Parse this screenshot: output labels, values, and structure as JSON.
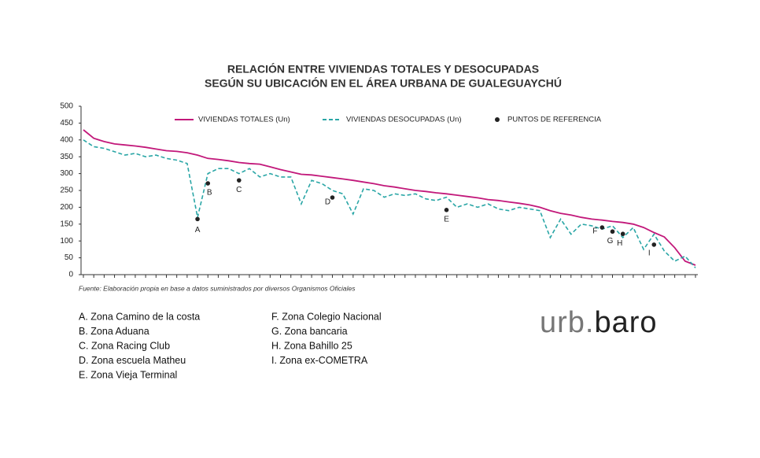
{
  "chart_data": {
    "type": "line",
    "title": [
      "RELACIÓN ENTRE VIVIENDAS TOTALES Y DESOCUPADAS",
      "SEGÚN SU UBICACIÓN EN EL ÁREA URBANA DE GUALEGUAYCHÚ"
    ],
    "categories": [
      null,
      null,
      null,
      null,
      null,
      null,
      null,
      null,
      null,
      null,
      null,
      null,
      null,
      null,
      null,
      null,
      null,
      null,
      null,
      null,
      null,
      null,
      null,
      null,
      null,
      null,
      null,
      null,
      null,
      null,
      null,
      null,
      null,
      null,
      null,
      null,
      null,
      null,
      null,
      null,
      null,
      null,
      null,
      null,
      null,
      null,
      null,
      null,
      null,
      null,
      null,
      null,
      null,
      null,
      null,
      null,
      null,
      null,
      null,
      null
    ],
    "series": [
      {
        "name": "VIVIENDAS TOTALES (Un)",
        "color": "#c2187a",
        "style": "solid",
        "values": [
          430,
          405,
          395,
          388,
          385,
          382,
          378,
          373,
          368,
          366,
          362,
          355,
          345,
          342,
          338,
          333,
          330,
          328,
          320,
          312,
          305,
          298,
          296,
          292,
          288,
          284,
          280,
          275,
          270,
          264,
          260,
          255,
          250,
          247,
          243,
          240,
          236,
          232,
          228,
          223,
          220,
          216,
          212,
          207,
          200,
          190,
          182,
          177,
          170,
          165,
          162,
          158,
          155,
          150,
          140,
          125,
          112,
          80,
          40,
          28
        ]
      },
      {
        "name": "VIVIENDAS DESOCUPADAS (Un)",
        "color": "#2aa6a6",
        "style": "dashed",
        "values": [
          400,
          380,
          375,
          365,
          355,
          360,
          350,
          355,
          345,
          340,
          330,
          170,
          300,
          315,
          315,
          300,
          315,
          290,
          300,
          290,
          290,
          210,
          280,
          270,
          250,
          240,
          180,
          255,
          250,
          230,
          240,
          235,
          240,
          225,
          220,
          230,
          200,
          210,
          200,
          210,
          195,
          190,
          200,
          195,
          190,
          110,
          165,
          120,
          150,
          145,
          135,
          145,
          110,
          140,
          75,
          120,
          70,
          40,
          55,
          20
        ]
      },
      {
        "name": "PUNTOS DE REFERENCIA",
        "color": "#222222",
        "style": "points",
        "values": [
          null,
          null,
          null,
          null,
          null,
          null,
          null,
          null,
          null,
          null,
          null,
          165,
          271,
          null,
          null,
          280,
          null,
          null,
          null,
          null,
          null,
          null,
          null,
          null,
          229,
          null,
          null,
          null,
          null,
          null,
          null,
          null,
          null,
          null,
          null,
          192,
          null,
          null,
          null,
          null,
          null,
          null,
          null,
          null,
          null,
          null,
          null,
          null,
          null,
          null,
          140,
          128,
          121,
          null,
          null,
          89,
          null,
          null,
          null,
          null
        ],
        "point_labels": [
          null,
          null,
          null,
          null,
          null,
          null,
          null,
          null,
          null,
          null,
          null,
          "A",
          "B",
          null,
          null,
          "C",
          null,
          null,
          null,
          null,
          null,
          null,
          null,
          null,
          "D",
          null,
          null,
          null,
          null,
          null,
          null,
          null,
          null,
          null,
          null,
          "E",
          null,
          null,
          null,
          null,
          null,
          null,
          null,
          null,
          null,
          null,
          null,
          null,
          null,
          null,
          "F",
          "G",
          "H",
          null,
          null,
          "I",
          null,
          null,
          null,
          null
        ]
      }
    ],
    "ylim": [
      0,
      500
    ],
    "yticks": [
      0,
      50,
      100,
      150,
      200,
      250,
      300,
      350,
      400,
      450,
      500
    ],
    "source": "Fuente: Elaboración propia en base a datos suministrados por diversos Organismos Oficiales",
    "zones": [
      "A. Zona Camino de la costa",
      "B. Zona Aduana",
      "C. Zona Racing Club",
      "D. Zona escuela Matheu",
      "E. Zona Vieja Terminal",
      "F. Zona Colegio Nacional",
      "G. Zona bancaria",
      "H. Zona Bahillo 25",
      "I. Zona ex-COMETRA"
    ],
    "logo": [
      "urb.",
      "baro"
    ]
  }
}
